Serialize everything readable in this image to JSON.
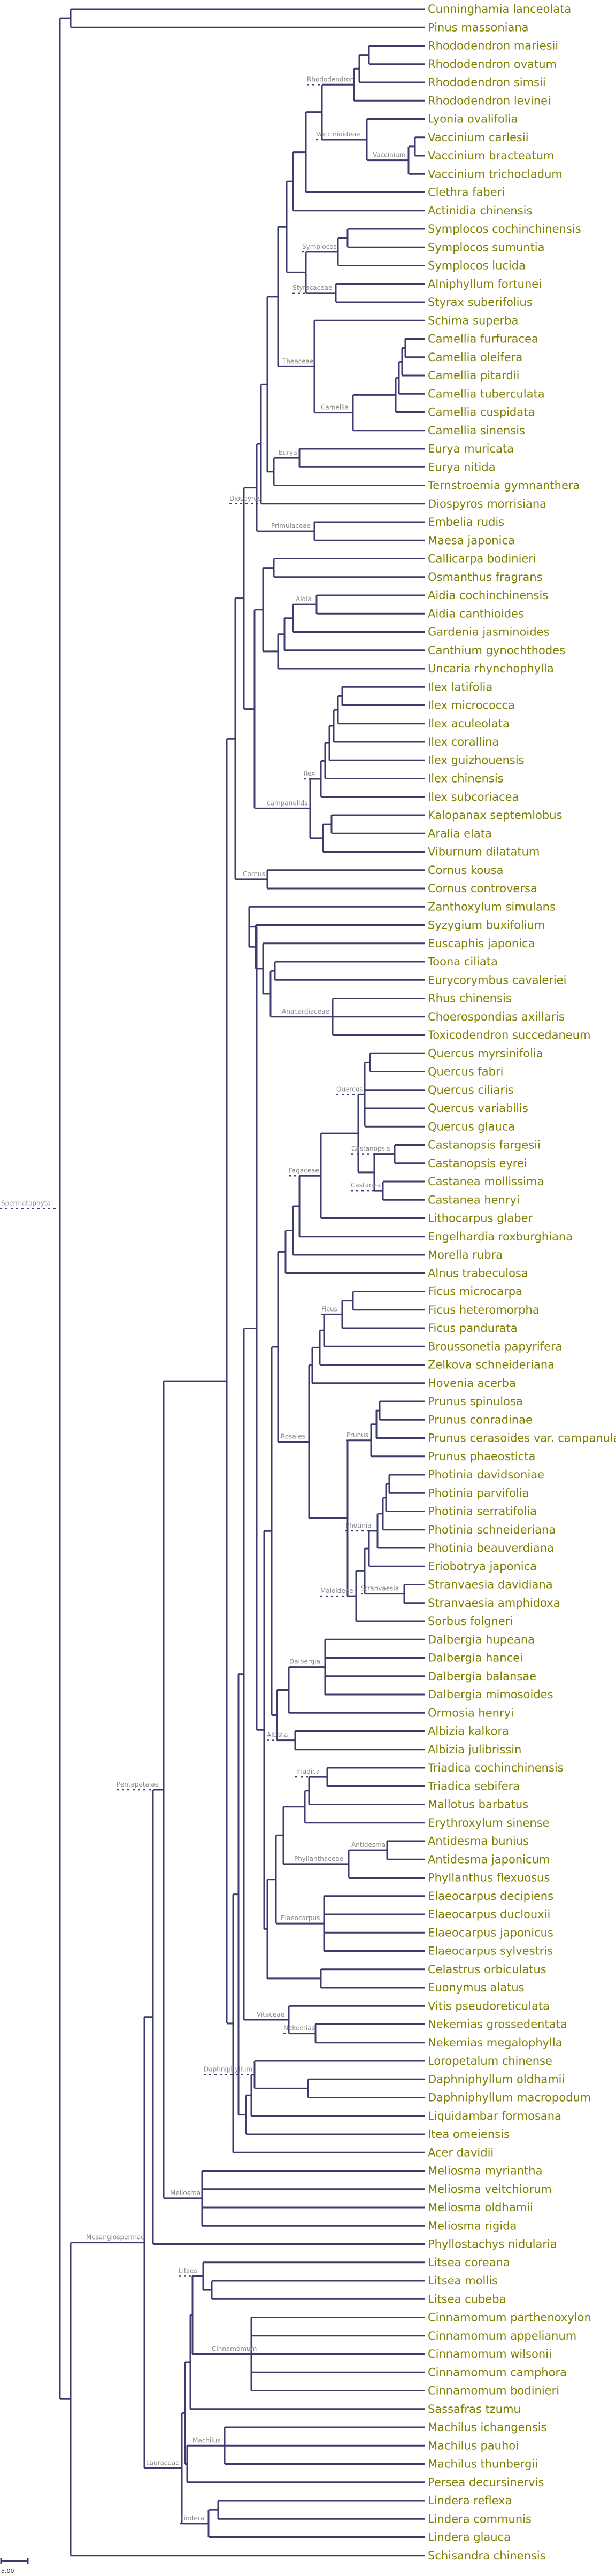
{
  "colors": {
    "branch": "#3b3b6d",
    "tip_text": "#7f7f00",
    "node_text": "#888888",
    "dotted": "#3b3b6d"
  },
  "tree": {
    "scale_bar_label": "5.00",
    "root": "",
    "nodes": [
      {
        "id": "root",
        "label": ""
      },
      {
        "id": "spermatophyta",
        "label": "Spermatophyta"
      },
      {
        "id": "mesangiospermae",
        "label": "Mesangiospermae"
      },
      {
        "id": "pentapetalae",
        "label": "Pentapetalae"
      },
      {
        "id": "rhododendron",
        "label": "Rhododendron"
      },
      {
        "id": "vacciniodeae",
        "label": "Vaccinioideae"
      },
      {
        "id": "vaccinium",
        "label": "Vaccinium"
      },
      {
        "id": "symplocos",
        "label": "Symplocos"
      },
      {
        "id": "styracaceae",
        "label": "Styracaceae"
      },
      {
        "id": "theaceae",
        "label": "Theaceae"
      },
      {
        "id": "camellia",
        "label": "Camellia"
      },
      {
        "id": "eurya",
        "label": "Eurya"
      },
      {
        "id": "diospyros",
        "label": "Diospyros"
      },
      {
        "id": "primulaceae",
        "label": "Primulaceae"
      },
      {
        "id": "aidia",
        "label": "Aidia"
      },
      {
        "id": "ilex",
        "label": "Ilex"
      },
      {
        "id": "campanulids",
        "label": "campanulids"
      },
      {
        "id": "cornus",
        "label": "Cornus"
      },
      {
        "id": "anacardiaceae",
        "label": "Anacardiaceae"
      },
      {
        "id": "quercus",
        "label": "Quercus"
      },
      {
        "id": "castanopsis",
        "label": "Castanopsis"
      },
      {
        "id": "castanea",
        "label": "Castanea"
      },
      {
        "id": "fagaceae",
        "label": "Fagaceae"
      },
      {
        "id": "ficus",
        "label": "Ficus"
      },
      {
        "id": "prunus",
        "label": "Prunus"
      },
      {
        "id": "photinia",
        "label": "Photinia"
      },
      {
        "id": "stranvaesia",
        "label": "Stranvaesia"
      },
      {
        "id": "maloideae",
        "label": "Maloideae"
      },
      {
        "id": "rosales",
        "label": "Rosales"
      },
      {
        "id": "dalbergia",
        "label": "Dalbergia"
      },
      {
        "id": "albizia",
        "label": "Albizia"
      },
      {
        "id": "triadica",
        "label": "Triadica"
      },
      {
        "id": "antidesma",
        "label": "Antidesma"
      },
      {
        "id": "phyllanthaceae",
        "label": "Phyllanthaceae"
      },
      {
        "id": "elaeocarpus",
        "label": "Elaeocarpus"
      },
      {
        "id": "vitaceae",
        "label": "Vitaceae"
      },
      {
        "id": "nekemias",
        "label": "Nekemias"
      },
      {
        "id": "daphniphyllum",
        "label": "Daphniphyllum"
      },
      {
        "id": "meliosma",
        "label": "Meliosma"
      },
      {
        "id": "laureaceae",
        "label": "Lauraceae"
      },
      {
        "id": "litsea",
        "label": "Litsea"
      },
      {
        "id": "cinnamomum",
        "label": "Cinnamomum"
      },
      {
        "id": "machilus",
        "label": "Machilus"
      },
      {
        "id": "lindera",
        "label": "Lindera"
      }
    ],
    "tips": [
      "Cunninghamia lanceolata",
      "Pinus massoniana",
      "Rhododendron mariesii",
      "Rhododendron ovatum",
      "Rhododendron simsii",
      "Rhododendron levinei",
      "Lyonia ovalifolia",
      "Vaccinium carlesii",
      "Vaccinium bracteatum",
      "Vaccinium trichocladum",
      "Clethra faberi",
      "Actinidia chinensis",
      "Symplocos cochinchinensis",
      "Symplocos sumuntia",
      "Symplocos lucida",
      "Alniphyllum fortunei",
      "Styrax suberifolius",
      "Schima superba",
      "Camellia furfuracea",
      "Camellia oleifera",
      "Camellia pitardii",
      "Camellia tuberculata",
      "Camellia cuspidata",
      "Camellia sinensis",
      "Eurya muricata",
      "Eurya nitida",
      "Ternstroemia gymnanthera",
      "Diospyros morrisiana",
      "Embelia rudis",
      "Maesa japonica",
      "Callicarpa bodinieri",
      "Osmanthus fragrans",
      "Aidia cochinchinensis",
      "Aidia canthioides",
      "Gardenia jasminoides",
      "Canthium gynochthodes",
      "Uncaria rhynchophylla",
      "Ilex latifolia",
      "Ilex micrococca",
      "Ilex aculeolata",
      "Ilex corallina",
      "Ilex guizhouensis",
      "Ilex chinensis",
      "Ilex subcoriacea",
      "Kalopanax septemlobus",
      "Aralia elata",
      "Viburnum dilatatum",
      "Cornus kousa",
      "Cornus controversa",
      "Zanthoxylum simulans",
      "Syzygium buxifolium",
      "Euscaphis japonica",
      "Toona ciliata",
      "Eurycorymbus cavaleriei",
      "Rhus chinensis",
      "Choerospondias axillaris",
      "Toxicodendron succedaneum",
      "Quercus myrsinifolia",
      "Quercus fabri",
      "Quercus ciliaris",
      "Quercus variabilis",
      "Quercus glauca",
      "Castanopsis fargesii",
      "Castanopsis eyrei",
      "Castanea mollissima",
      "Castanea henryi",
      "Lithocarpus glaber",
      "Engelhardia roxburghiana",
      "Morella rubra",
      "Alnus trabeculosa",
      "Ficus microcarpa",
      "Ficus heteromorpha",
      "Ficus pandurata",
      "Broussonetia papyrifera",
      "Zelkova schneideriana",
      "Hovenia acerba",
      "Prunus spinulosa",
      "Prunus conradinae",
      "Prunus cerasoides var. campanulata",
      "Prunus phaeosticta",
      "Photinia davidsoniae",
      "Photinia parvifolia",
      "Photinia serratifolia",
      "Photinia schneideriana",
      "Photinia beauverdiana",
      "Eriobotrya japonica",
      "Stranvaesia davidiana",
      "Stranvaesia amphidoxa",
      "Sorbus folgneri",
      "Dalbergia hupeana",
      "Dalbergia hancei",
      "Dalbergia balansae",
      "Dalbergia mimosoides",
      "Ormosia henryi",
      "Albizia kalkora",
      "Albizia julibrissin",
      "Triadica cochinchinensis",
      "Triadica sebifera",
      "Mallotus barbatus",
      "Erythroxylum sinense",
      "Antidesma bunius",
      "Antidesma japonicum",
      "Phyllanthus flexuosus",
      "Elaeocarpus decipiens",
      "Elaeocarpus duclouxii",
      "Elaeocarpus japonicus",
      "Elaeocarpus sylvestris",
      "Celastrus orbiculatus",
      "Euonymus alatus",
      "Vitis pseudoreticulata",
      "Nekemias grossedentata",
      "Nekemias megalophylla",
      "Loropetalum chinense",
      "Daphniphyllum oldhamii",
      "Daphniphyllum macropodum",
      "Liquidambar formosana",
      "Itea omeiensis",
      "Acer davidii",
      "Meliosma myriantha",
      "Meliosma veitchiorum",
      "Meliosma oldhamii",
      "Meliosma rigida",
      "Phyllostachys nidularia",
      "Litsea coreana",
      "Litsea mollis",
      "Litsea cubeba",
      "Cinnamomum parthenoxylon",
      "Cinnamomum appelianum",
      "Cinnamomum wilsonii",
      "Cinnamomum camphora",
      "Cinnamomum bodinieri",
      "Sassafras tzumu",
      "Machilus ichangensis",
      "Machilus pauhoi",
      "Machilus thunbergii",
      "Persea decursinervis",
      "Lindera reflexa",
      "Lindera communis",
      "Lindera glauca",
      "Schisandra chinensis"
    ]
  }
}
